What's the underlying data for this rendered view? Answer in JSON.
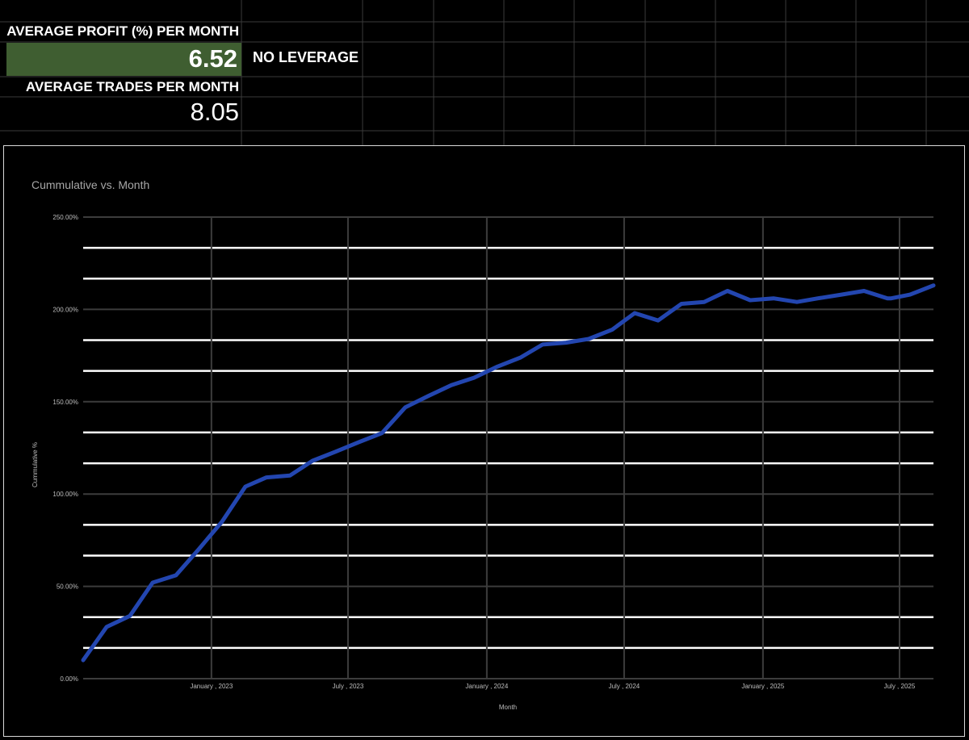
{
  "sheet": {
    "profit_label": "AVERAGE PROFIT (%) PER  MONTH",
    "profit_value": "6.52",
    "leverage_label": "NO LEVERAGE",
    "trades_label": "AVERAGE TRADES PER  MONTH",
    "trades_value": "8.05",
    "highlight_color": "#3f5e31"
  },
  "chart_data": {
    "type": "line",
    "title": "Cummulative vs. Month",
    "xlabel": "Month",
    "ylabel": "Cummulative %",
    "ylim": [
      0,
      250
    ],
    "xlim": [
      "2022-07-15",
      "2025-08-15"
    ],
    "y_ticks": [
      "0.00%",
      "50.00%",
      "100.00%",
      "150.00%",
      "200.00%",
      "250.00%"
    ],
    "x_ticks": [
      {
        "date": "2023-01-01",
        "label": "January , 2023"
      },
      {
        "date": "2023-07-01",
        "label": "July , 2023"
      },
      {
        "date": "2024-01-01",
        "label": "January , 2024"
      },
      {
        "date": "2024-07-01",
        "label": "July , 2024"
      },
      {
        "date": "2025-01-01",
        "label": "January , 2025"
      },
      {
        "date": "2025-07-01",
        "label": "July , 2025"
      }
    ],
    "grid": true,
    "line_color": "#2346b0",
    "series": [
      {
        "name": "",
        "x": [
          "2022-07-15",
          "2022-08-15",
          "2022-09-15",
          "2022-10-15",
          "2022-11-15",
          "2022-12-15",
          "2023-01-15",
          "2023-02-15",
          "2023-03-15",
          "2023-04-15",
          "2023-05-15",
          "2023-06-15",
          "2023-07-15",
          "2023-08-15",
          "2023-09-15",
          "2023-10-15",
          "2023-11-15",
          "2023-12-15",
          "2024-01-15",
          "2024-02-15",
          "2024-03-15",
          "2024-04-15",
          "2024-05-15",
          "2024-06-15",
          "2024-07-15",
          "2024-08-15",
          "2024-09-15",
          "2024-10-15",
          "2024-11-15",
          "2024-12-15",
          "2025-01-15",
          "2025-02-15",
          "2025-03-15",
          "2025-04-15",
          "2025-05-15",
          "2025-06-15",
          "2025-06-20",
          "2025-07-15",
          "2025-08-15"
        ],
        "values": [
          10,
          28,
          34,
          52,
          56,
          70,
          85,
          104,
          109,
          110,
          118,
          123,
          128,
          133,
          147,
          153,
          159,
          163,
          169,
          174,
          181,
          182,
          184,
          189,
          198,
          194,
          203,
          204,
          210,
          205,
          206,
          204,
          206,
          208,
          210,
          206,
          206,
          208,
          213
        ]
      }
    ]
  }
}
